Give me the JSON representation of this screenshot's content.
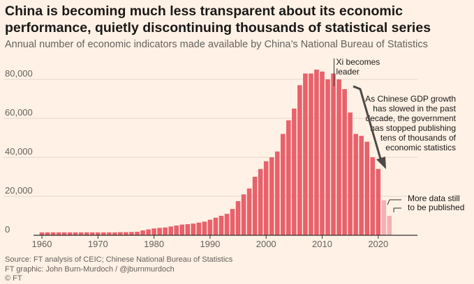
{
  "chart_data": {
    "type": "bar",
    "title": "China is becoming much less transparent about its economic performance, quietly discontinuing thousands of statistical series",
    "subtitle": "Annual number of economic indicators made available by China’s National Bureau of Statistics",
    "x": [
      1960,
      1961,
      1962,
      1963,
      1964,
      1965,
      1966,
      1967,
      1968,
      1969,
      1970,
      1971,
      1972,
      1973,
      1974,
      1975,
      1976,
      1977,
      1978,
      1979,
      1980,
      1981,
      1982,
      1983,
      1984,
      1985,
      1986,
      1987,
      1988,
      1989,
      1990,
      1991,
      1992,
      1993,
      1994,
      1995,
      1996,
      1997,
      1998,
      1999,
      2000,
      2001,
      2002,
      2003,
      2004,
      2005,
      2006,
      2007,
      2008,
      2009,
      2010,
      2011,
      2012,
      2013,
      2014,
      2015,
      2016,
      2017,
      2018,
      2019,
      2020,
      2021,
      2022
    ],
    "values": [
      1500,
      1500,
      1500,
      1500,
      1500,
      1500,
      1500,
      1500,
      1500,
      1500,
      1500,
      1500,
      1500,
      1500,
      1600,
      1600,
      1700,
      1800,
      2500,
      3000,
      3500,
      3800,
      4000,
      4500,
      5000,
      5500,
      5700,
      6000,
      6500,
      7000,
      8000,
      9000,
      10000,
      11000,
      13500,
      17500,
      21000,
      24000,
      30000,
      34000,
      38000,
      40000,
      43000,
      52000,
      59000,
      65000,
      77000,
      83000,
      83000,
      85000,
      84000,
      80000,
      83000,
      80000,
      75000,
      63000,
      52000,
      51000,
      48000,
      40000,
      34000,
      18000,
      10000
    ],
    "provisional_from": 2021,
    "ylim": [
      0,
      90000
    ],
    "yticks": [
      "0",
      "20,000",
      "40,000",
      "60,000",
      "80,000"
    ],
    "ytick_values": [
      0,
      20000,
      40000,
      60000,
      80000
    ],
    "xticks": [
      "1960",
      "1970",
      "1980",
      "1990",
      "2000",
      "2010",
      "2020"
    ],
    "xtick_values": [
      1960,
      1970,
      1980,
      1990,
      2000,
      2010,
      2020
    ],
    "grid": true,
    "colors": {
      "bar": "#e8616b",
      "provisional": "#f3b1b5",
      "grid": "#e2d8cf",
      "axis": "#33302e",
      "arrow": "#4d4845"
    },
    "annotations": {
      "xi": {
        "lines": [
          "Xi becomes",
          "leader"
        ],
        "x": 2012
      },
      "slowdown": {
        "lines": [
          "As Chinese GDP growth",
          "has slowed in the past",
          "decade, the government",
          "has stopped publishing",
          "tens of thousands of",
          "economic statistics"
        ]
      },
      "more_data": {
        "lines": [
          "More data still",
          "to be published"
        ]
      }
    }
  },
  "footer": {
    "source": "Source: FT analysis of CEIC; Chinese National Bureau of Statistics",
    "graphic": "FT graphic: John Burn-Murdoch / @jburnmurdoch",
    "copyright": "© FT"
  }
}
